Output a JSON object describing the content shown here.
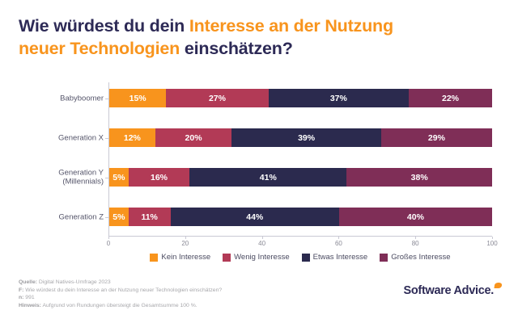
{
  "title": {
    "line1_dark": "Wie würdest du dein ",
    "line1_accent": "Interesse an der Nutzung",
    "line2_accent": "neuer Technologien",
    "line2_dark": " einschätzen?"
  },
  "chart_data": {
    "type": "bar",
    "stacked": true,
    "orientation": "horizontal",
    "categories": [
      "Babyboomer",
      "Generation X",
      "Generation Y\n(Millennials)",
      "Generation Z"
    ],
    "series": [
      {
        "name": "Kein Interesse",
        "color": "#F8941D",
        "values": [
          15,
          12,
          5,
          5
        ]
      },
      {
        "name": "Wenig Interesse",
        "color": "#B23A56",
        "values": [
          27,
          20,
          16,
          11
        ]
      },
      {
        "name": "Etwas Interesse",
        "color": "#2B2A4E",
        "values": [
          37,
          39,
          41,
          44
        ]
      },
      {
        "name": "Großes Interesse",
        "color": "#7F2E57",
        "values": [
          22,
          29,
          38,
          40
        ]
      }
    ],
    "x_ticks": [
      0,
      20,
      40,
      60,
      80,
      100
    ],
    "xlim": [
      0,
      100
    ],
    "value_suffix": "%",
    "grid": false,
    "legend_position": "bottom"
  },
  "footer": {
    "lines": [
      {
        "label": "Quelle:",
        "text": " Digital Natives-Umfrage 2023"
      },
      {
        "label": "F:",
        "text": " Wie würdest du dein Interesse an der Nutzung neuer Technologien einschätzen?"
      },
      {
        "label": "n:",
        "text": " 991"
      },
      {
        "label": "Hinweis:",
        "text": " Aufgrund von Rundungen übersteigt die Gesamtsumme 100 %."
      }
    ]
  },
  "logo": {
    "text": "Software Advice.",
    "icon": "speech-bubble-icon"
  },
  "colors": {
    "accent_orange": "#F8941D",
    "title_navy": "#2D2A56",
    "axis_gray": "#C9C9D4",
    "label_gray": "#55556A",
    "footer_gray": "#A7A7AB"
  }
}
